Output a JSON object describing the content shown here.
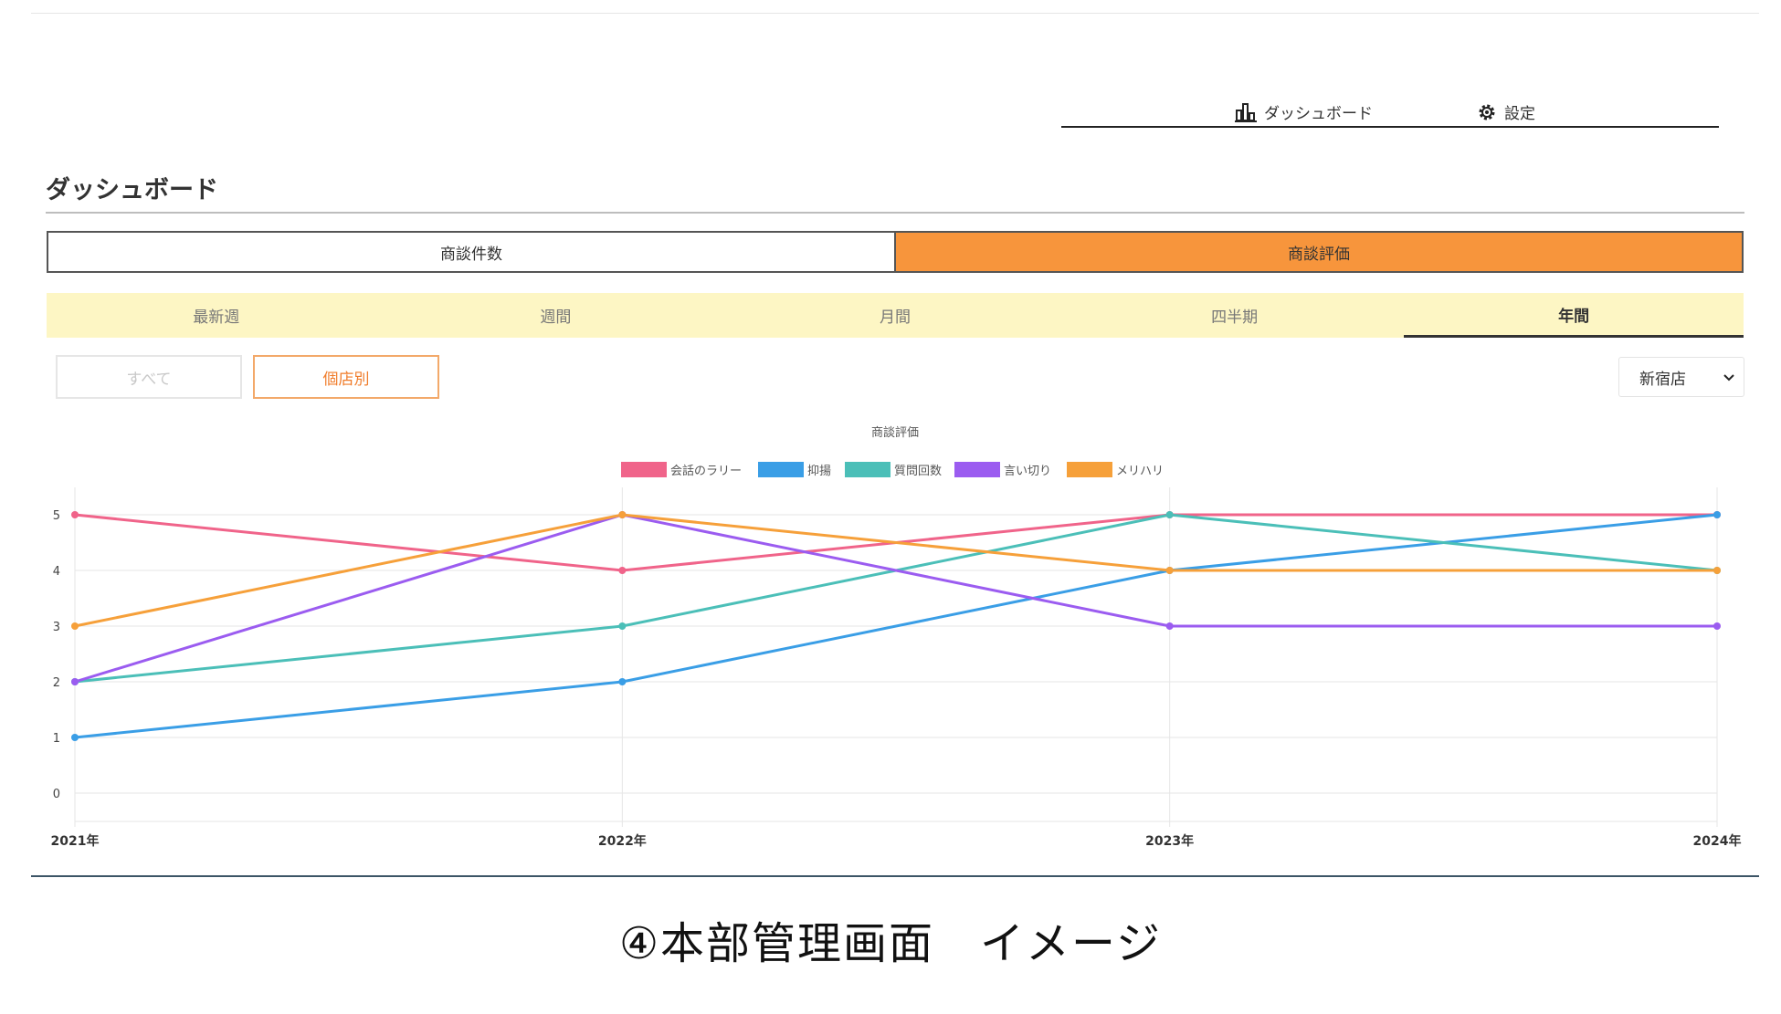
{
  "nav": {
    "dashboard_label": "ダッシュボード",
    "settings_label": "設定"
  },
  "page": {
    "title": "ダッシュボード"
  },
  "main_tabs": [
    {
      "label": "商談件数",
      "active": false
    },
    {
      "label": "商談評価",
      "active": true
    }
  ],
  "period_tabs": [
    {
      "label": "最新週",
      "active": false
    },
    {
      "label": "週間",
      "active": false
    },
    {
      "label": "月間",
      "active": false
    },
    {
      "label": "四半期",
      "active": false
    },
    {
      "label": "年間",
      "active": true
    }
  ],
  "filters": {
    "all_label": "すべて",
    "store_label": "個店別",
    "store_select_value": "新宿店"
  },
  "colors": {
    "accent": "#f7953c",
    "period_bg": "#fdf6c4"
  },
  "chart_data": {
    "type": "line",
    "title": "商談評価",
    "x": [
      "2021年",
      "2022年",
      "2023年",
      "2024年"
    ],
    "ylim": [
      0,
      5
    ],
    "yticks": [
      0,
      1,
      2,
      3,
      4,
      5
    ],
    "grid": true,
    "legend_position": "top",
    "series": [
      {
        "name": "会話のラリー",
        "color": "#f0648a",
        "values": [
          5,
          4,
          5,
          5
        ]
      },
      {
        "name": "抑揚",
        "color": "#3a9ee6",
        "values": [
          1,
          2,
          4,
          5
        ]
      },
      {
        "name": "質問回数",
        "color": "#4bbfb8",
        "values": [
          2,
          3,
          5,
          4
        ]
      },
      {
        "name": "言い切り",
        "color": "#9b5cf0",
        "values": [
          2,
          5,
          3,
          3
        ]
      },
      {
        "name": "メリハリ",
        "color": "#f6a03a",
        "values": [
          3,
          5,
          4,
          4
        ]
      }
    ]
  },
  "caption": "④本部管理画面　イメージ"
}
